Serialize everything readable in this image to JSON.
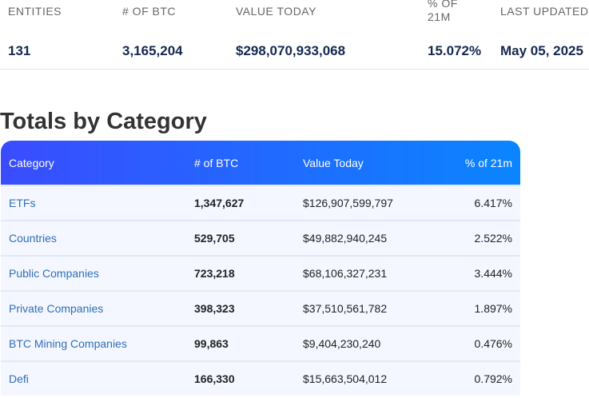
{
  "summary": {
    "headers": [
      "ENTITIES",
      "# OF BTC",
      "VALUE TODAY",
      "% OF 21M",
      "LAST UPDATED"
    ],
    "values": [
      "131",
      "3,165,204",
      "$298,070,933,068",
      "15.072%",
      "May 05, 2025"
    ]
  },
  "section_title": "Totals by Category",
  "table": {
    "columns": [
      "Category",
      "# of BTC",
      "Value Today",
      "% of 21m"
    ],
    "rows": [
      [
        "ETFs",
        "1,347,627",
        "$126,907,599,797",
        "6.417%"
      ],
      [
        "Countries",
        "529,705",
        "$49,882,940,245",
        "2.522%"
      ],
      [
        "Public Companies",
        "723,218",
        "$68,106,327,231",
        "3.444%"
      ],
      [
        "Private Companies",
        "398,323",
        "$37,510,561,782",
        "1.897%"
      ],
      [
        "BTC Mining Companies",
        "99,863",
        "$9,404,230,240",
        "0.476%"
      ],
      [
        "Defi",
        "166,330",
        "$15,663,504,012",
        "0.792%"
      ]
    ]
  }
}
